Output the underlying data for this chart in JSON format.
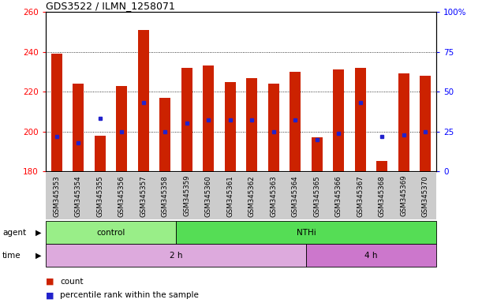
{
  "title": "GDS3522 / ILMN_1258071",
  "samples": [
    "GSM345353",
    "GSM345354",
    "GSM345355",
    "GSM345356",
    "GSM345357",
    "GSM345358",
    "GSM345359",
    "GSM345360",
    "GSM345361",
    "GSM345362",
    "GSM345363",
    "GSM345364",
    "GSM345365",
    "GSM345366",
    "GSM345367",
    "GSM345368",
    "GSM345369",
    "GSM345370"
  ],
  "bar_bottom": 180,
  "counts": [
    239,
    224,
    198,
    223,
    251,
    217,
    232,
    233,
    225,
    227,
    224,
    230,
    197,
    231,
    232,
    185,
    229,
    228
  ],
  "percentile_ranks": [
    22,
    18,
    33,
    25,
    43,
    25,
    30,
    32,
    32,
    32,
    25,
    32,
    20,
    24,
    43,
    22,
    23,
    25
  ],
  "ylim_left": [
    180,
    260
  ],
  "ylim_right": [
    0,
    100
  ],
  "yticks_left": [
    180,
    200,
    220,
    240,
    260
  ],
  "yticks_right": [
    0,
    25,
    50,
    75,
    100
  ],
  "bar_color": "#cc2200",
  "dot_color": "#2222cc",
  "plot_bg": "#ffffff",
  "agent_groups": [
    {
      "label": "control",
      "start": 0,
      "end": 5,
      "color": "#99ee88"
    },
    {
      "label": "NTHi",
      "start": 6,
      "end": 17,
      "color": "#55dd55"
    }
  ],
  "time_groups": [
    {
      "label": "2 h",
      "start": 0,
      "end": 11,
      "color": "#ddaadd"
    },
    {
      "label": "4 h",
      "start": 12,
      "end": 17,
      "color": "#cc77cc"
    }
  ],
  "legend_count_label": "count",
  "legend_pct_label": "percentile rank within the sample",
  "xlabel_bg": "#cccccc",
  "n_samples": 18,
  "bar_width": 0.5
}
